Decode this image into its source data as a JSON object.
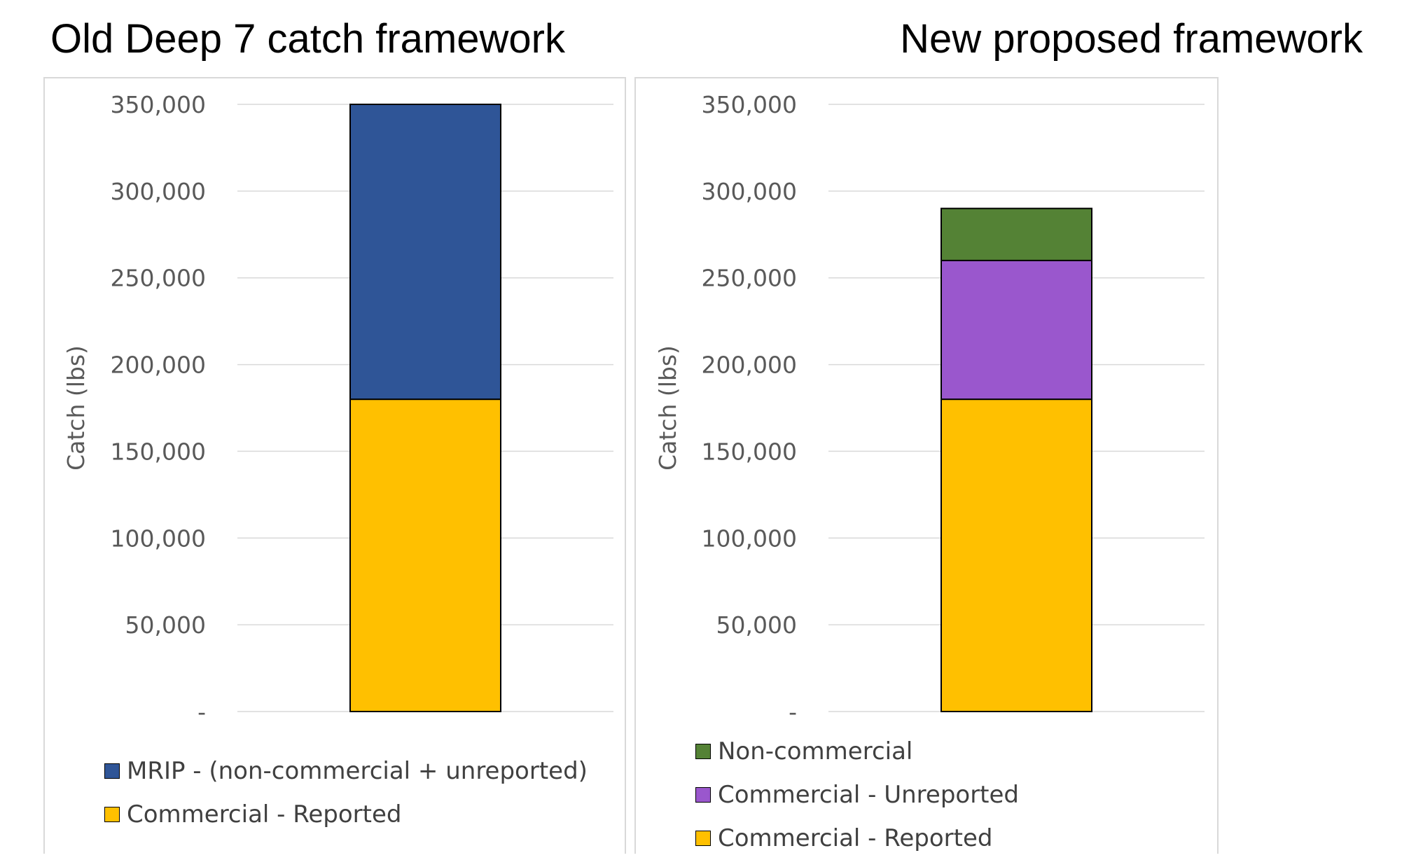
{
  "titles": {
    "left": "Old Deep 7 catch framework",
    "right": "New proposed framework"
  },
  "chart_data": [
    {
      "type": "bar",
      "stacked": true,
      "title": "Old Deep 7 catch framework",
      "categories": [
        ""
      ],
      "ylabel": "Catch (lbs)",
      "ylim": [
        0,
        350000
      ],
      "yticks": [
        "-",
        "50,000",
        "100,000",
        "150,000",
        "200,000",
        "250,000",
        "300,000",
        "350,000"
      ],
      "grid": true,
      "legend_position": "bottom",
      "series": [
        {
          "name": "Commercial - Reported",
          "values": [
            180000
          ],
          "color": "#ffc000"
        },
        {
          "name": "MRIP - (non-commercial + unreported)",
          "values": [
            170000
          ],
          "color": "#2f5597"
        }
      ],
      "legend_order": [
        "MRIP - (non-commercial + unreported)",
        "Commercial - Reported"
      ]
    },
    {
      "type": "bar",
      "stacked": true,
      "title": "New proposed framework",
      "categories": [
        ""
      ],
      "ylabel": "Catch (lbs)",
      "ylim": [
        0,
        350000
      ],
      "yticks": [
        "-",
        "50,000",
        "100,000",
        "150,000",
        "200,000",
        "250,000",
        "300,000",
        "350,000"
      ],
      "grid": true,
      "legend_position": "bottom",
      "series": [
        {
          "name": "Commercial - Reported",
          "values": [
            180000
          ],
          "color": "#ffc000"
        },
        {
          "name": "Commercial - Unreported",
          "values": [
            80000
          ],
          "color": "#9a57cd"
        },
        {
          "name": "Non-commercial",
          "values": [
            30000
          ],
          "color": "#548235"
        }
      ],
      "legend_order": [
        "Non-commercial",
        "Commercial - Unreported",
        "Commercial - Reported"
      ]
    }
  ]
}
